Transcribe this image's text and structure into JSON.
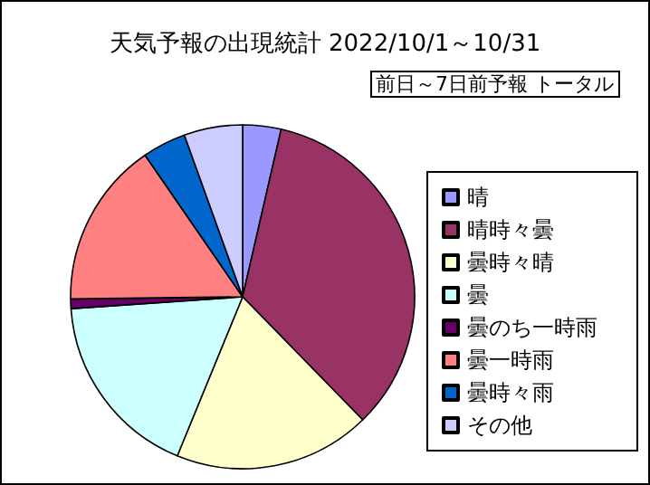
{
  "chart_data": {
    "type": "pie",
    "title": "天気予報の出現統計 2022/10/1～10/31",
    "subtitle": "前日～7日前予報 トータル",
    "categories": [
      "晴",
      "晴時々曇",
      "曇時々晴",
      "曇",
      "曇のち一時雨",
      "曇一時雨",
      "曇時々雨",
      "その他"
    ],
    "values": [
      3.6,
      34.1,
      18.5,
      17.7,
      0.9,
      15.6,
      4.1,
      5.5
    ],
    "colors": [
      "#9999ff",
      "#993366",
      "#ffffcc",
      "#ccffff",
      "#660066",
      "#ff8080",
      "#0066cc",
      "#ccccff"
    ],
    "legend": "right"
  }
}
